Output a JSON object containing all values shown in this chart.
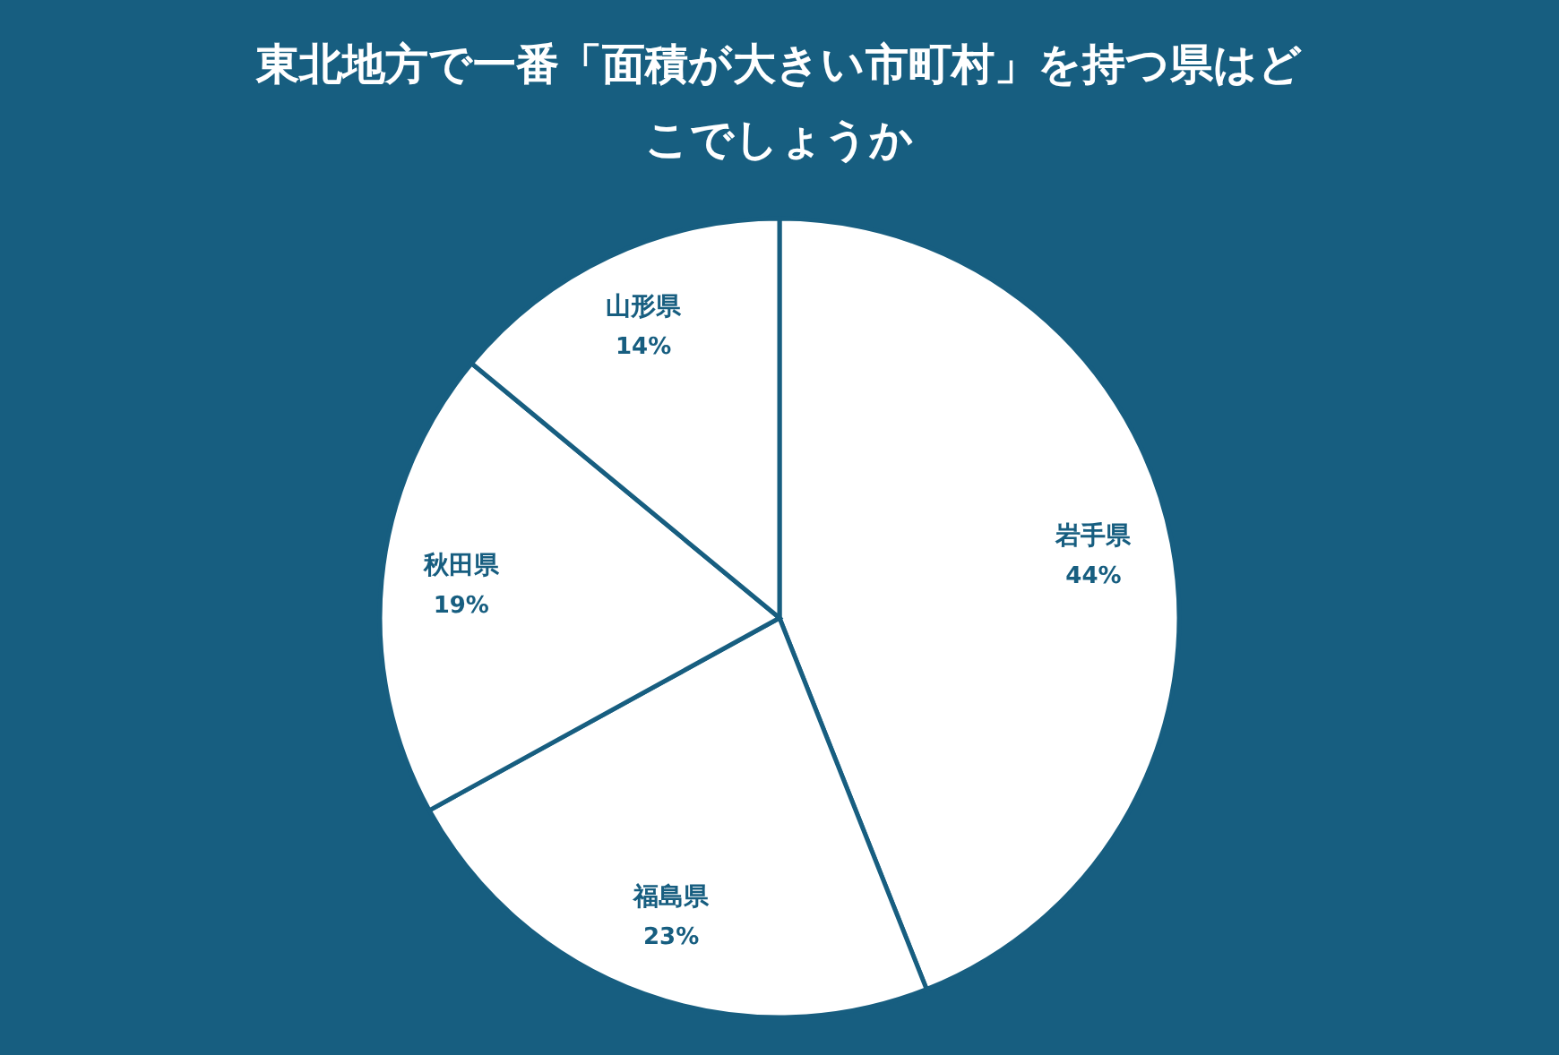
{
  "chart_data": {
    "type": "pie",
    "title": "東北地方で一番「面積が大きい市町村」を持つ県はどこでしょうか",
    "categories": [
      "岩手県",
      "福島県",
      "秋田県",
      "山形県"
    ],
    "values": [
      44,
      23,
      19,
      14
    ],
    "value_labels": [
      "44%",
      "23%",
      "19%",
      "14%"
    ],
    "colors": [
      "#ffffff",
      "#ffffff",
      "#ffffff",
      "#ffffff"
    ],
    "legend": false
  }
}
